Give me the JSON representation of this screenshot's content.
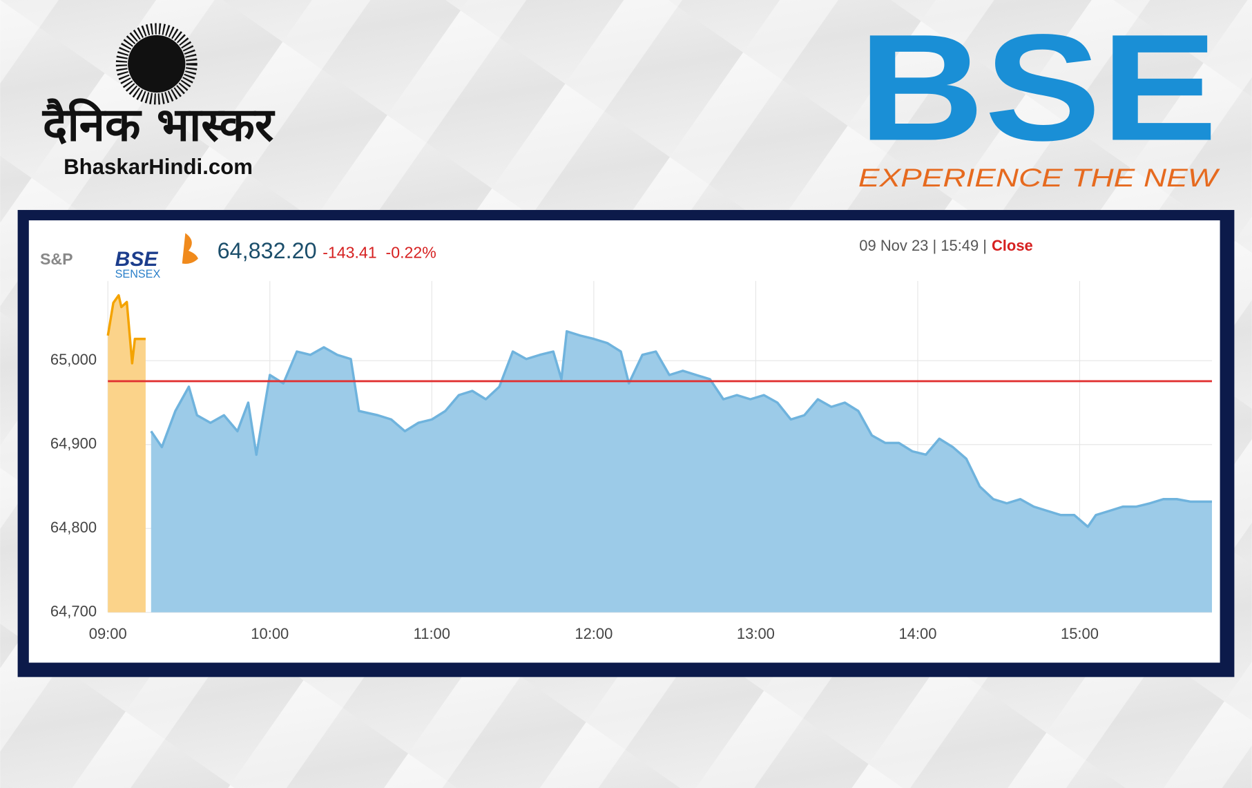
{
  "branding": {
    "newspaper_name": "दैनिक भास्कर",
    "newspaper_site": "BhaskarHindi.com",
    "exchange_logo": "BSE",
    "exchange_tagline": "EXPERIENCE THE NEW"
  },
  "header": {
    "index_provider": "S&P",
    "index_brand": "BSE",
    "index_name": "SENSEX",
    "price": "64,832.20",
    "change": "-143.41",
    "change_percent": "-0.22%",
    "timestamp": "09 Nov 23 | 15:49 |",
    "status": "Close"
  },
  "chart_data": {
    "type": "area",
    "xlim": [
      540,
      949
    ],
    "xticks": [
      {
        "value": 540,
        "label": "09:00"
      },
      {
        "value": 600,
        "label": "10:00"
      },
      {
        "value": 660,
        "label": "11:00"
      },
      {
        "value": 720,
        "label": "12:00"
      },
      {
        "value": 780,
        "label": "13:00"
      },
      {
        "value": 840,
        "label": "14:00"
      },
      {
        "value": 900,
        "label": "15:00"
      }
    ],
    "ylim": [
      64700,
      65095
    ],
    "yticks": [
      {
        "value": 64700,
        "label": "64,700"
      },
      {
        "value": 64800,
        "label": "64,800"
      },
      {
        "value": 64900,
        "label": "64,900"
      },
      {
        "value": 65000,
        "label": "65,000"
      }
    ],
    "grid": true,
    "reference_line": 64975.61,
    "reference_color": "#e03131",
    "series": [
      {
        "color": "#f4a300",
        "fill": "#fbd38a",
        "x": [
          540,
          542,
          544,
          545,
          547,
          549,
          550,
          554
        ],
        "values": [
          65030,
          65069,
          65078,
          65064,
          65070,
          64997,
          65026,
          65026
        ]
      },
      {
        "color": "#6fb3dd",
        "fill": "#9ccbe8",
        "x": [
          556,
          560,
          565,
          570,
          573,
          578,
          583,
          588,
          592,
          595,
          600,
          605,
          610,
          615,
          620,
          625,
          630,
          633,
          640,
          645,
          650,
          655,
          660,
          665,
          670,
          675,
          680,
          685,
          690,
          695,
          700,
          705,
          708,
          710,
          715,
          720,
          725,
          730,
          733,
          738,
          743,
          748,
          753,
          758,
          763,
          768,
          773,
          778,
          783,
          788,
          793,
          798,
          803,
          808,
          813,
          818,
          823,
          828,
          833,
          838,
          843,
          848,
          853,
          858,
          863,
          868,
          873,
          878,
          883,
          888,
          893,
          898,
          903,
          906,
          911,
          916,
          921,
          926,
          931,
          936,
          941,
          949
        ],
        "values": [
          64916,
          64897,
          64940,
          64969,
          64935,
          64926,
          64935,
          64916,
          64950,
          64888,
          64983,
          64973,
          65011,
          65007,
          65016,
          65007,
          65002,
          64940,
          64935,
          64930,
          64916,
          64926,
          64930,
          64940,
          64959,
          64964,
          64954,
          64969,
          65011,
          65002,
          65007,
          65011,
          64978,
          65035,
          65030,
          65026,
          65021,
          65011,
          64973,
          65007,
          65011,
          64983,
          64988,
          64983,
          64978,
          64954,
          64959,
          64954,
          64959,
          64950,
          64930,
          64935,
          64954,
          64945,
          64950,
          64940,
          64911,
          64902,
          64902,
          64892,
          64888,
          64907,
          64897,
          64883,
          64850,
          64835,
          64830,
          64835,
          64826,
          64821,
          64816,
          64816,
          64802,
          64816,
          64821,
          64826,
          64826,
          64830,
          64835,
          64835,
          64832,
          64832
        ]
      }
    ]
  }
}
